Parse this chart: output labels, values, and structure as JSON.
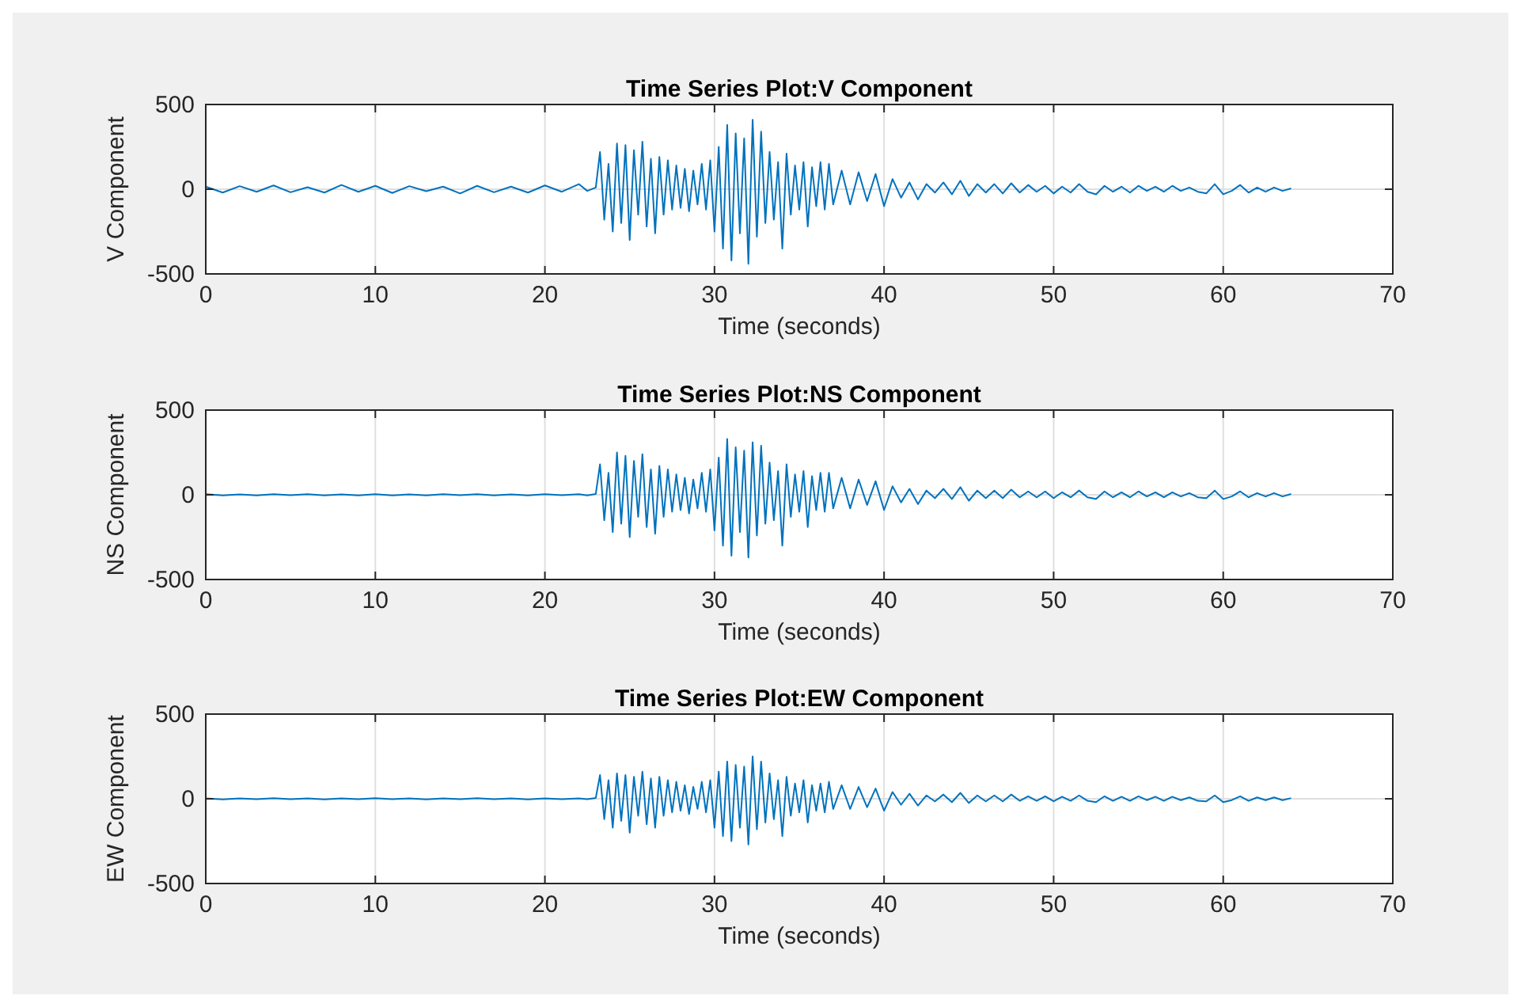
{
  "chart_data": [
    {
      "type": "line",
      "title": "Time Series Plot:V Component",
      "xlabel": "Time (seconds)",
      "ylabel": "V Component",
      "xlim": [
        0,
        70
      ],
      "xticks": [
        0,
        10,
        20,
        30,
        40,
        50,
        60,
        70
      ],
      "ylim": [
        -500,
        500
      ],
      "yticks": [
        -500,
        0,
        500
      ],
      "grid": true,
      "line_style": "solid",
      "marker": "none",
      "x": [
        0,
        1,
        2,
        3,
        4,
        5,
        6,
        7,
        8,
        9,
        10,
        11,
        12,
        13,
        14,
        15,
        16,
        17,
        18,
        19,
        20,
        21,
        22,
        22.5,
        23,
        23.25,
        23.5,
        23.75,
        24,
        24.25,
        24.5,
        24.75,
        25,
        25.25,
        25.5,
        25.75,
        26,
        26.25,
        26.5,
        26.75,
        27,
        27.25,
        27.5,
        27.75,
        28,
        28.25,
        28.5,
        28.75,
        29,
        29.25,
        29.5,
        29.75,
        30,
        30.25,
        30.5,
        30.75,
        31,
        31.25,
        31.5,
        31.75,
        32,
        32.25,
        32.5,
        32.75,
        33,
        33.25,
        33.5,
        33.75,
        34,
        34.25,
        34.5,
        34.75,
        35,
        35.25,
        35.5,
        35.75,
        36,
        36.25,
        36.5,
        36.75,
        37,
        37.5,
        38,
        38.5,
        39,
        39.5,
        40,
        40.5,
        41,
        41.5,
        42,
        42.5,
        43,
        43.5,
        44,
        44.5,
        45,
        45.5,
        46,
        46.5,
        47,
        47.5,
        48,
        48.5,
        49,
        49.5,
        50,
        50.5,
        51,
        51.5,
        52,
        52.5,
        53,
        53.5,
        54,
        54.5,
        55,
        55.5,
        56,
        56.5,
        57,
        57.5,
        58,
        58.5,
        59,
        59.5,
        60,
        60.5,
        61,
        61.5,
        62,
        62.5,
        63,
        63.5,
        64
      ],
      "series": [
        {
          "color": "#0072bd",
          "values": [
            15,
            -20,
            18,
            -15,
            22,
            -18,
            12,
            -20,
            25,
            -15,
            20,
            -22,
            18,
            -12,
            15,
            -25,
            20,
            -18,
            15,
            -20,
            22,
            -15,
            30,
            -10,
            10,
            220,
            -180,
            150,
            -250,
            270,
            -200,
            260,
            -300,
            230,
            -150,
            280,
            -220,
            180,
            -260,
            190,
            -150,
            170,
            -120,
            140,
            -110,
            120,
            -130,
            110,
            -90,
            150,
            -120,
            170,
            -250,
            250,
            -350,
            380,
            -420,
            330,
            -260,
            300,
            -440,
            410,
            -280,
            340,
            -200,
            220,
            -180,
            160,
            -350,
            210,
            -150,
            140,
            -120,
            160,
            -220,
            130,
            -100,
            160,
            -120,
            150,
            -90,
            110,
            -90,
            100,
            -70,
            90,
            -100,
            60,
            -50,
            40,
            -60,
            30,
            -20,
            40,
            -30,
            50,
            -40,
            30,
            -20,
            30,
            -25,
            35,
            -20,
            25,
            -15,
            20,
            -25,
            15,
            -20,
            30,
            -15,
            -30,
            20,
            -15,
            15,
            -20,
            20,
            -10,
            15,
            -15,
            20,
            -10,
            10,
            -15,
            -25,
            30,
            -30,
            -10,
            25,
            -20,
            10,
            -15,
            10,
            -10,
            5
          ]
        }
      ]
    },
    {
      "type": "line",
      "title": "Time Series Plot:NS Component",
      "xlabel": "Time (seconds)",
      "ylabel": "NS Component",
      "xlim": [
        0,
        70
      ],
      "xticks": [
        0,
        10,
        20,
        30,
        40,
        50,
        60,
        70
      ],
      "ylim": [
        -500,
        500
      ],
      "yticks": [
        -500,
        0,
        500
      ],
      "grid": true,
      "line_style": "solid",
      "marker": "none",
      "x": [
        0,
        1,
        2,
        3,
        4,
        5,
        6,
        7,
        8,
        9,
        10,
        11,
        12,
        13,
        14,
        15,
        16,
        17,
        18,
        19,
        20,
        21,
        22,
        22.5,
        23,
        23.25,
        23.5,
        23.75,
        24,
        24.25,
        24.5,
        24.75,
        25,
        25.25,
        25.5,
        25.75,
        26,
        26.25,
        26.5,
        26.75,
        27,
        27.25,
        27.5,
        27.75,
        28,
        28.25,
        28.5,
        28.75,
        29,
        29.25,
        29.5,
        29.75,
        30,
        30.25,
        30.5,
        30.75,
        31,
        31.25,
        31.5,
        31.75,
        32,
        32.25,
        32.5,
        32.75,
        33,
        33.25,
        33.5,
        33.75,
        34,
        34.25,
        34.5,
        34.75,
        35,
        35.25,
        35.5,
        35.75,
        36,
        36.25,
        36.5,
        36.75,
        37,
        37.5,
        38,
        38.5,
        39,
        39.5,
        40,
        40.5,
        41,
        41.5,
        42,
        42.5,
        43,
        43.5,
        44,
        44.5,
        45,
        45.5,
        46,
        46.5,
        47,
        47.5,
        48,
        48.5,
        49,
        49.5,
        50,
        50.5,
        51,
        51.5,
        52,
        52.5,
        53,
        53.5,
        54,
        54.5,
        55,
        55.5,
        56,
        56.5,
        57,
        57.5,
        58,
        58.5,
        59,
        59.5,
        60,
        60.5,
        61,
        61.5,
        62,
        62.5,
        63,
        63.5,
        64
      ],
      "series": [
        {
          "color": "#0072bd",
          "values": [
            3,
            -4,
            2,
            -3,
            4,
            -2,
            3,
            -4,
            2,
            -3,
            4,
            -3,
            2,
            -4,
            3,
            -2,
            4,
            -3,
            2,
            -4,
            3,
            -2,
            3,
            -3,
            5,
            180,
            -150,
            130,
            -220,
            250,
            -170,
            230,
            -250,
            200,
            -130,
            240,
            -190,
            150,
            -230,
            170,
            -130,
            150,
            -100,
            120,
            -90,
            100,
            -110,
            90,
            -80,
            130,
            -100,
            150,
            -210,
            220,
            -300,
            330,
            -360,
            280,
            -220,
            260,
            -370,
            310,
            -240,
            290,
            -170,
            190,
            -150,
            140,
            -300,
            180,
            -130,
            120,
            -100,
            140,
            -190,
            110,
            -90,
            130,
            -100,
            130,
            -80,
            100,
            -80,
            90,
            -60,
            80,
            -90,
            50,
            -45,
            35,
            -55,
            25,
            -20,
            35,
            -25,
            45,
            -35,
            25,
            -20,
            25,
            -20,
            30,
            -15,
            20,
            -15,
            20,
            -20,
            15,
            -15,
            25,
            -15,
            -25,
            20,
            -15,
            15,
            -15,
            20,
            -10,
            15,
            -15,
            15,
            -10,
            10,
            -15,
            -20,
            25,
            -25,
            -10,
            20,
            -15,
            10,
            -10,
            10,
            -10,
            5
          ]
        }
      ]
    },
    {
      "type": "line",
      "title": "Time Series Plot:EW Component",
      "xlabel": "Time (seconds)",
      "ylabel": "EW Component",
      "xlim": [
        0,
        70
      ],
      "xticks": [
        0,
        10,
        20,
        30,
        40,
        50,
        60,
        70
      ],
      "ylim": [
        -500,
        500
      ],
      "yticks": [
        -500,
        0,
        500
      ],
      "grid": true,
      "line_style": "solid",
      "marker": "none",
      "x": [
        0,
        1,
        2,
        3,
        4,
        5,
        6,
        7,
        8,
        9,
        10,
        11,
        12,
        13,
        14,
        15,
        16,
        17,
        18,
        19,
        20,
        21,
        22,
        22.5,
        23,
        23.25,
        23.5,
        23.75,
        24,
        24.25,
        24.5,
        24.75,
        25,
        25.25,
        25.5,
        25.75,
        26,
        26.25,
        26.5,
        26.75,
        27,
        27.25,
        27.5,
        27.75,
        28,
        28.25,
        28.5,
        28.75,
        29,
        29.25,
        29.5,
        29.75,
        30,
        30.25,
        30.5,
        30.75,
        31,
        31.25,
        31.5,
        31.75,
        32,
        32.25,
        32.5,
        32.75,
        33,
        33.25,
        33.5,
        33.75,
        34,
        34.25,
        34.5,
        34.75,
        35,
        35.25,
        35.5,
        35.75,
        36,
        36.25,
        36.5,
        36.75,
        37,
        37.5,
        38,
        38.5,
        39,
        39.5,
        40,
        40.5,
        41,
        41.5,
        42,
        42.5,
        43,
        43.5,
        44,
        44.5,
        45,
        45.5,
        46,
        46.5,
        47,
        47.5,
        48,
        48.5,
        49,
        49.5,
        50,
        50.5,
        51,
        51.5,
        52,
        52.5,
        53,
        53.5,
        54,
        54.5,
        55,
        55.5,
        56,
        56.5,
        57,
        57.5,
        58,
        58.5,
        59,
        59.5,
        60,
        60.5,
        61,
        61.5,
        62,
        62.5,
        63,
        63.5,
        64
      ],
      "series": [
        {
          "color": "#0072bd",
          "values": [
            2,
            -3,
            2,
            -2,
            3,
            -2,
            2,
            -3,
            2,
            -2,
            3,
            -2,
            2,
            -3,
            2,
            -2,
            3,
            -2,
            2,
            -3,
            2,
            -2,
            2,
            -2,
            5,
            140,
            -120,
            110,
            -170,
            150,
            -130,
            140,
            -200,
            130,
            -100,
            160,
            -150,
            120,
            -170,
            130,
            -100,
            110,
            -80,
            100,
            -70,
            80,
            -90,
            70,
            -60,
            100,
            -80,
            110,
            -170,
            160,
            -220,
            220,
            -250,
            200,
            -170,
            190,
            -270,
            250,
            -180,
            220,
            -140,
            150,
            -120,
            110,
            -220,
            130,
            -100,
            90,
            -80,
            110,
            -140,
            80,
            -70,
            90,
            -80,
            100,
            -60,
            80,
            -60,
            70,
            -50,
            60,
            -70,
            40,
            -35,
            30,
            -40,
            20,
            -15,
            25,
            -20,
            35,
            -25,
            20,
            -15,
            20,
            -15,
            25,
            -12,
            15,
            -12,
            15,
            -15,
            12,
            -12,
            20,
            -12,
            -20,
            15,
            -12,
            12,
            -12,
            15,
            -8,
            12,
            -12,
            12,
            -8,
            8,
            -12,
            -15,
            20,
            -20,
            -8,
            15,
            -12,
            8,
            -8,
            8,
            -8,
            4
          ]
        }
      ]
    }
  ]
}
